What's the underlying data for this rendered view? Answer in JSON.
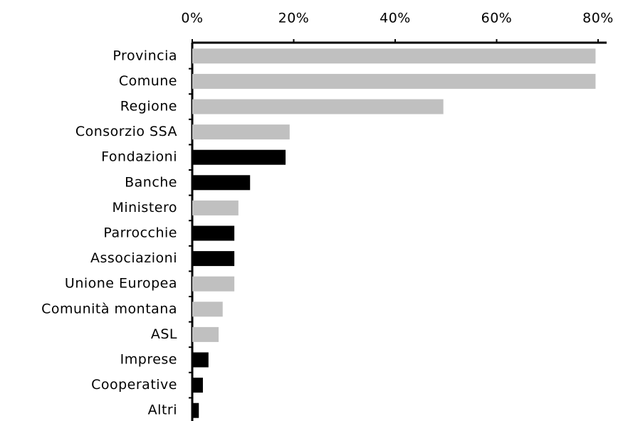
{
  "chart_data": {
    "type": "bar",
    "orientation": "horizontal",
    "categories": [
      "Provincia",
      "Comune",
      "Regione",
      "Consorzio SSA",
      "Fondazioni",
      "Banche",
      "Ministero",
      "Parrocchie",
      "Associazioni",
      "Unione Europea",
      "Comunità montana",
      "ASL",
      "Imprese",
      "Cooperative",
      "Altri"
    ],
    "values": [
      79.5,
      79.5,
      49.5,
      19.2,
      18.4,
      11.4,
      9.1,
      8.3,
      8.3,
      8.3,
      6.0,
      5.2,
      3.2,
      2.1,
      1.3
    ],
    "colors": [
      "#c0c0c0",
      "#c0c0c0",
      "#c0c0c0",
      "#c0c0c0",
      "#000000",
      "#000000",
      "#c0c0c0",
      "#000000",
      "#000000",
      "#c0c0c0",
      "#c0c0c0",
      "#c0c0c0",
      "#000000",
      "#000000",
      "#000000"
    ],
    "xlim": [
      0,
      80
    ],
    "xticks": [
      {
        "value": 0,
        "label": "0%"
      },
      {
        "value": 20,
        "label": "20%"
      },
      {
        "value": 40,
        "label": "40%"
      },
      {
        "value": 60,
        "label": "60%"
      },
      {
        "value": 80,
        "label": "80%"
      }
    ],
    "grid": false
  }
}
